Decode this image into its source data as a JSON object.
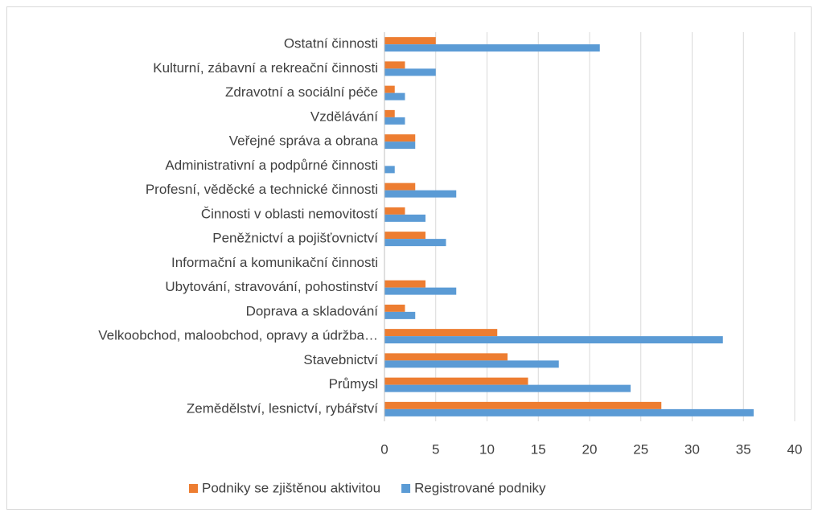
{
  "chart_data": {
    "type": "barh",
    "categories": [
      "Ostatní činnosti",
      "Kulturní, zábavní a rekreační činnosti",
      "Zdravotní a sociální péče",
      "Vzdělávání",
      "Veřejné správa a obrana",
      "Administrativní a podpůrné činnosti",
      "Profesní, věděcké a technické činnosti",
      "Činnosti v oblasti nemovitostí",
      "Peněžnictví a pojišťovnictví",
      "Informační a komunikační činnosti",
      "Ubytování, stravování, pohostinství",
      "Doprava a skladování",
      "Velkoobchod, maloobchod, opravy a údržba…",
      "Stavebnictví",
      "Průmysl",
      "Zemědělství, lesnictví, rybářství"
    ],
    "series": [
      {
        "name": "Podniky se zjištěnou aktivitou",
        "color": "#ed7d31",
        "values": [
          5,
          2,
          1,
          1,
          3,
          0,
          3,
          2,
          4,
          0,
          4,
          2,
          11,
          12,
          14,
          27
        ]
      },
      {
        "name": "Registrované podniky",
        "color": "#5b9bd5",
        "values": [
          21,
          5,
          2,
          2,
          3,
          1,
          7,
          4,
          6,
          0,
          7,
          3,
          33,
          17,
          24,
          36
        ]
      }
    ],
    "xlim": [
      0,
      40
    ],
    "xticks": [
      0,
      5,
      10,
      15,
      20,
      25,
      30,
      35,
      40
    ],
    "grid": true,
    "legend": "bottom"
  }
}
